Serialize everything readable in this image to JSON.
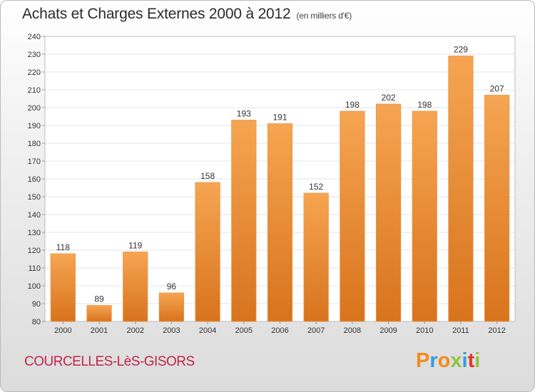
{
  "header": {
    "title": "Achats et Charges Externes 2000 à 2012",
    "subtitle": "(en milliers d'€)"
  },
  "footer": {
    "commune": "COURCELLES-LèS-GISORS",
    "logo_letters": [
      "P",
      "r",
      "o",
      "x",
      "i",
      "t",
      "i"
    ],
    "logo_colors": [
      "#f28b1d",
      "#3a9ad9",
      "#f28b1d",
      "#8cc63f",
      "#3a9ad9",
      "#e8332a",
      "#8cc63f"
    ]
  },
  "chart_data": {
    "type": "bar",
    "title": "Achats et Charges Externes 2000 à 2012",
    "subtitle": "(en milliers d'€)",
    "categories": [
      "2000",
      "2001",
      "2002",
      "2003",
      "2004",
      "2005",
      "2006",
      "2007",
      "2008",
      "2009",
      "2010",
      "2011",
      "2012"
    ],
    "values": [
      118,
      89,
      119,
      96,
      158,
      193,
      191,
      152,
      198,
      202,
      198,
      229,
      207
    ],
    "xlabel": "",
    "ylabel": "",
    "ylim": [
      80,
      240
    ],
    "yticks": [
      80,
      90,
      100,
      110,
      120,
      130,
      140,
      150,
      160,
      170,
      180,
      190,
      200,
      210,
      220,
      230,
      240
    ],
    "grid": true,
    "bar_color": "#f0882c"
  }
}
